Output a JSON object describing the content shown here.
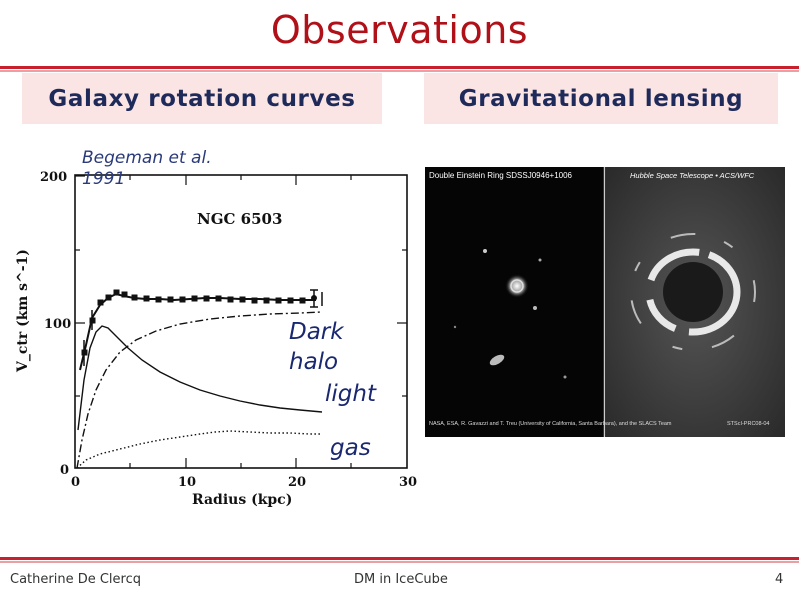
{
  "slide": {
    "title": "Observations",
    "left_heading": "Galaxy rotation curves",
    "right_heading": "Gravitational lensing"
  },
  "rotation_plot": {
    "citation": "Begeman et al. 1991",
    "galaxy_label": "NGC 6503",
    "ylabel": "V_ctr (km s^-1)",
    "xlabel": "Radius (kpc)",
    "x_ticks": [
      "0",
      "10",
      "20",
      "30"
    ],
    "y_ticks": [
      "0",
      "100",
      "200"
    ],
    "annotations": {
      "dark": "Dark",
      "halo": "halo",
      "light": "light",
      "gas": "gas"
    }
  },
  "lensing_image": {
    "header_left": "Double Einstein Ring SDSSJ0946+1006",
    "header_right": "Hubble Space Telescope • ACS/WFC",
    "credit": "NASA, ESA, R. Gavazzi and T. Treu (University of California, Santa Barbara), and the SLACS Team",
    "credit_id": "STScI-PRC08-04"
  },
  "footer": {
    "author": "Catherine De Clercq",
    "talk": "DM in IceCube",
    "page": "4"
  },
  "colors": {
    "title": "#b01018",
    "rule": "#c8202c",
    "heading_bg": "#fbe4e4",
    "heading_text": "#1e2a5a"
  }
}
